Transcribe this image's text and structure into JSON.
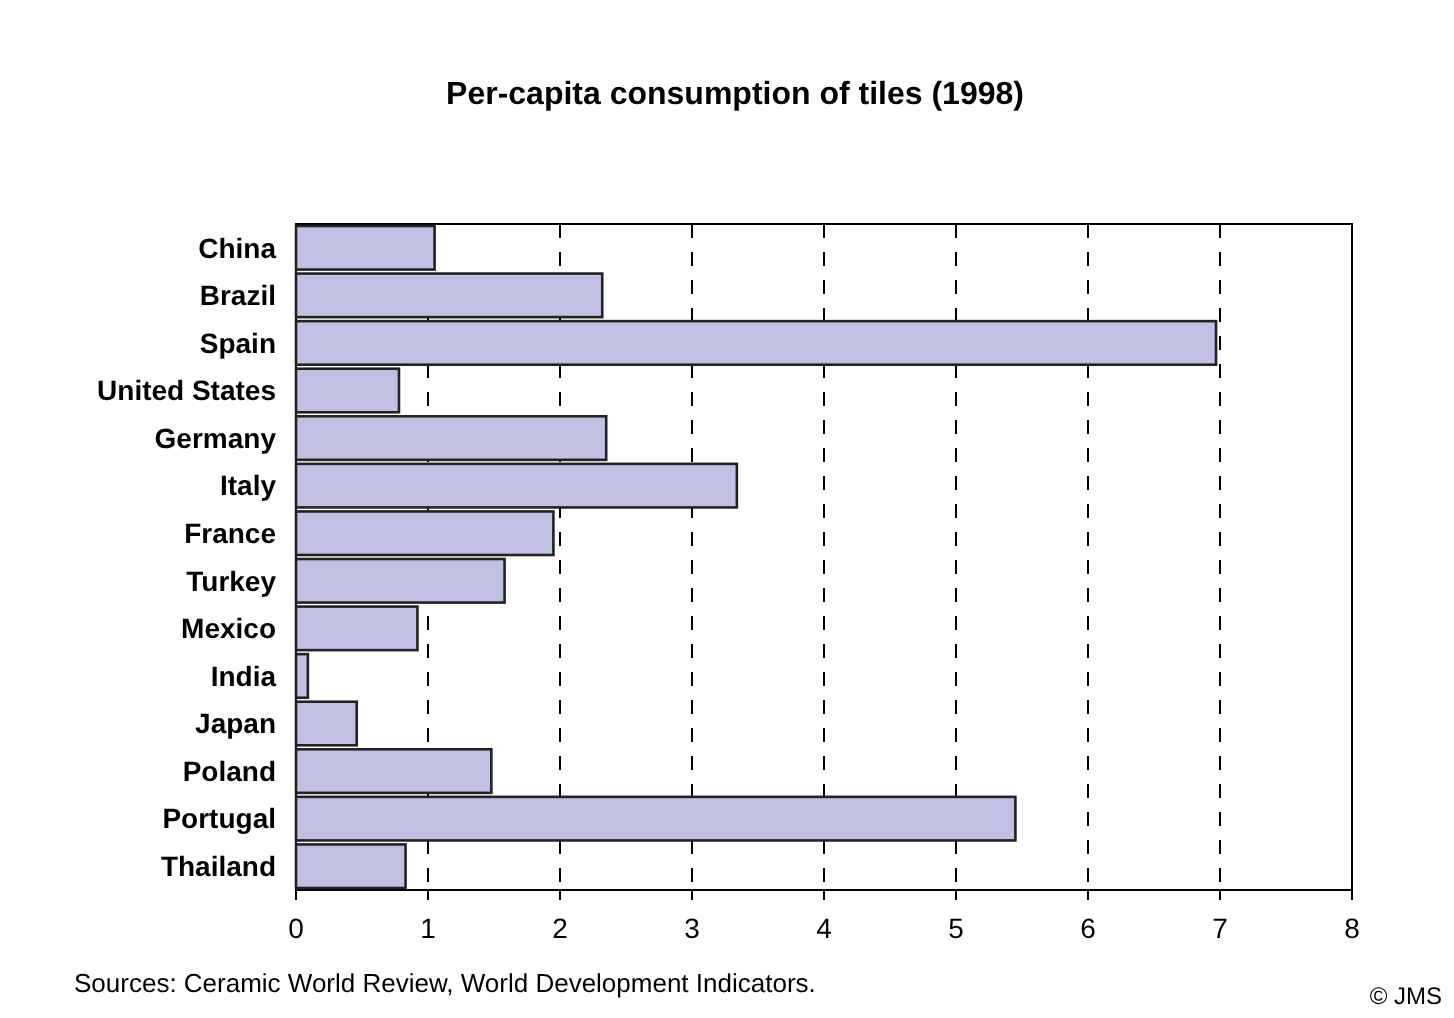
{
  "chart_data": {
    "type": "bar",
    "orientation": "horizontal",
    "title": "Per-capita consumption of tiles (1998)",
    "categories": [
      "China",
      "Brazil",
      "Spain",
      "United States",
      "Germany",
      "Italy",
      "France",
      "Turkey",
      "Mexico",
      "India",
      "Japan",
      "Poland",
      "Portugal",
      "Thailand"
    ],
    "values": [
      1.05,
      2.32,
      6.97,
      0.78,
      2.35,
      3.34,
      1.95,
      1.58,
      0.92,
      0.09,
      0.46,
      1.48,
      5.45,
      0.83
    ],
    "color": "#c0c0e2",
    "xlim": [
      0,
      8
    ],
    "xticks": [
      0,
      1,
      2,
      3,
      4,
      5,
      6,
      7,
      8
    ],
    "grid": "x",
    "annotations": [
      "Sources: Ceramic World Review, World Development Indicators.",
      "© JMS"
    ]
  }
}
